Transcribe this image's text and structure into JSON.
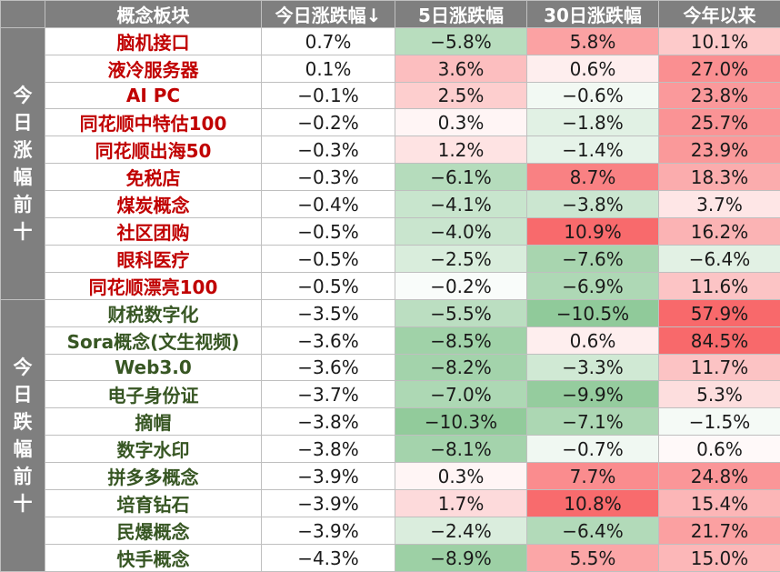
{
  "header": {
    "corner": "",
    "concept": "概念板块",
    "today": "今日涨跌幅↓",
    "d5": "5日涨跌幅",
    "d30": "30日涨跌幅",
    "ytd": "今年以来"
  },
  "groups": {
    "top": "今日涨幅前十",
    "bottom": "今日跌幅前十"
  },
  "colors": {
    "header_bg": "#7f7f7f",
    "up_text": "#c00000",
    "down_text": "#375623",
    "pos_scale": "#f8696b",
    "neg_scale": "#63be7b"
  },
  "rows": [
    {
      "name": "脑机接口",
      "today": "0.7%",
      "d5": "−5.8%",
      "d30": "5.8%",
      "ytd": "10.1%"
    },
    {
      "name": "液冷服务器",
      "today": "0.1%",
      "d5": "3.6%",
      "d30": "0.6%",
      "ytd": "27.0%"
    },
    {
      "name": "AI PC",
      "today": "−0.1%",
      "d5": "2.5%",
      "d30": "−0.6%",
      "ytd": "23.8%"
    },
    {
      "name": "同花顺中特估100",
      "today": "−0.2%",
      "d5": "0.3%",
      "d30": "−1.8%",
      "ytd": "25.7%"
    },
    {
      "name": "同花顺出海50",
      "today": "−0.3%",
      "d5": "1.2%",
      "d30": "−1.4%",
      "ytd": "23.9%"
    },
    {
      "name": "免税店",
      "today": "−0.3%",
      "d5": "−6.1%",
      "d30": "8.7%",
      "ytd": "18.3%"
    },
    {
      "name": "煤炭概念",
      "today": "−0.4%",
      "d5": "−4.1%",
      "d30": "−3.8%",
      "ytd": "3.7%"
    },
    {
      "name": "社区团购",
      "today": "−0.5%",
      "d5": "−4.0%",
      "d30": "10.9%",
      "ytd": "16.2%"
    },
    {
      "name": "眼科医疗",
      "today": "−0.5%",
      "d5": "−2.5%",
      "d30": "−7.6%",
      "ytd": "−6.4%"
    },
    {
      "name": "同花顺漂亮100",
      "today": "−0.5%",
      "d5": "−0.2%",
      "d30": "−6.9%",
      "ytd": "11.6%"
    },
    {
      "name": "财税数字化",
      "today": "−3.5%",
      "d5": "−5.5%",
      "d30": "−10.5%",
      "ytd": "57.9%"
    },
    {
      "name": "Sora概念(文生视频)",
      "today": "−3.6%",
      "d5": "−8.5%",
      "d30": "0.6%",
      "ytd": "84.5%"
    },
    {
      "name": "Web3.0",
      "today": "−3.6%",
      "d5": "−8.2%",
      "d30": "−3.3%",
      "ytd": "11.7%"
    },
    {
      "name": "电子身份证",
      "today": "−3.7%",
      "d5": "−7.0%",
      "d30": "−9.9%",
      "ytd": "5.3%"
    },
    {
      "name": "摘帽",
      "today": "−3.8%",
      "d5": "−10.3%",
      "d30": "−7.1%",
      "ytd": "−1.5%"
    },
    {
      "name": "数字水印",
      "today": "−3.8%",
      "d5": "−8.1%",
      "d30": "−0.7%",
      "ytd": "0.6%"
    },
    {
      "name": "拼多多概念",
      "today": "−3.9%",
      "d5": "0.3%",
      "d30": "7.7%",
      "ytd": "24.8%"
    },
    {
      "name": "培育钻石",
      "today": "−3.9%",
      "d5": "1.7%",
      "d30": "10.8%",
      "ytd": "15.4%"
    },
    {
      "name": "民爆概念",
      "today": "−3.9%",
      "d5": "−2.4%",
      "d30": "−6.4%",
      "ytd": "21.7%"
    },
    {
      "name": "快手概念",
      "today": "−4.3%",
      "d5": "−8.9%",
      "d30": "5.5%",
      "ytd": "15.0%"
    }
  ]
}
